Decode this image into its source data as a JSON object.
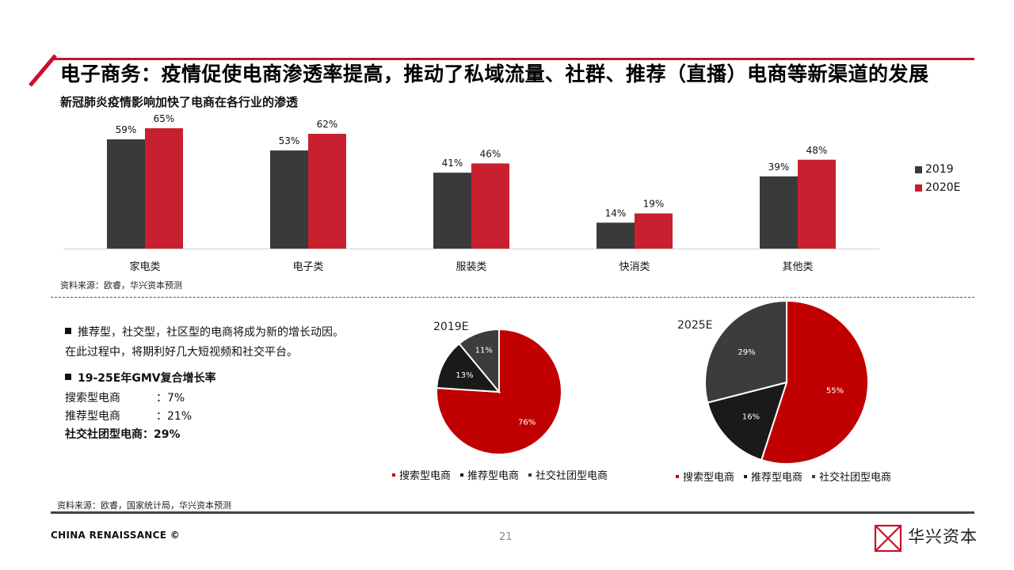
{
  "title": "电子商务：疫情促使电商渗透率提高，推动了私域流量、社群、推荐（直播）电商等新渠道的发展",
  "colors": {
    "accent": "#c8102e",
    "dark": "#3a3a3a",
    "black": "#1a1a1a",
    "grey": "#3c3c3c"
  },
  "left_text": {
    "bullet1_line1": "推荐型，社交型，社区型的电商将成为新的增长动因。",
    "bullet1_line2": "在此过程中，将期利好几大短视频和社交平台。",
    "bullet2": "19-25E年GMV复合增长率",
    "rows": [
      {
        "label": "搜索型电商",
        "sep": "：",
        "value": "7%"
      },
      {
        "label": "推荐型电商",
        "sep": "：",
        "value": "21%"
      },
      {
        "label": "社交社团型电商",
        "sep": "：",
        "value": "29%"
      }
    ]
  },
  "source1": "资料来源：欧睿，华兴资本预测",
  "source2": "资料来源：欧睿，国家统计局，华兴资本预测",
  "footer": {
    "left": "CHINA RENAISSANCE ©",
    "page": "21",
    "logo_text": "华兴资本"
  },
  "chart_data": [
    {
      "type": "bar",
      "title": "新冠肺炎疫情影响加快了电商在各行业的渗透",
      "categories": [
        "家电类",
        "电子类",
        "服装类",
        "快消类",
        "其他类"
      ],
      "series": [
        {
          "name": "2019",
          "values": [
            59,
            53,
            41,
            14,
            39
          ],
          "labels": [
            "59%",
            "53%",
            "41%",
            "14%",
            "39%"
          ],
          "color": "#3a3a3a"
        },
        {
          "name": "2020E",
          "values": [
            65,
            62,
            46,
            19,
            48
          ],
          "labels": [
            "65%",
            "62%",
            "46%",
            "19%",
            "48%"
          ],
          "color": "#c8202e"
        }
      ],
      "ylim": [
        0,
        70
      ],
      "legend": "right"
    },
    {
      "type": "pie",
      "title": "2019E",
      "labels": [
        "搜索型电商",
        "推荐型电商",
        "社交社团型电商"
      ],
      "values": [
        76,
        13,
        11
      ],
      "value_labels": [
        "76%",
        "13%",
        "11%"
      ],
      "colors": [
        "#c00000",
        "#1a1a1a",
        "#3c3c3c"
      ],
      "legend": "bottom"
    },
    {
      "type": "pie",
      "title": "2025E",
      "labels": [
        "搜索型电商",
        "推荐型电商",
        "社交社团型电商"
      ],
      "values": [
        55,
        16,
        29
      ],
      "value_labels": [
        "55%",
        "16%",
        "29%"
      ],
      "colors": [
        "#c00000",
        "#1a1a1a",
        "#3c3c3c"
      ],
      "legend": "bottom"
    }
  ]
}
